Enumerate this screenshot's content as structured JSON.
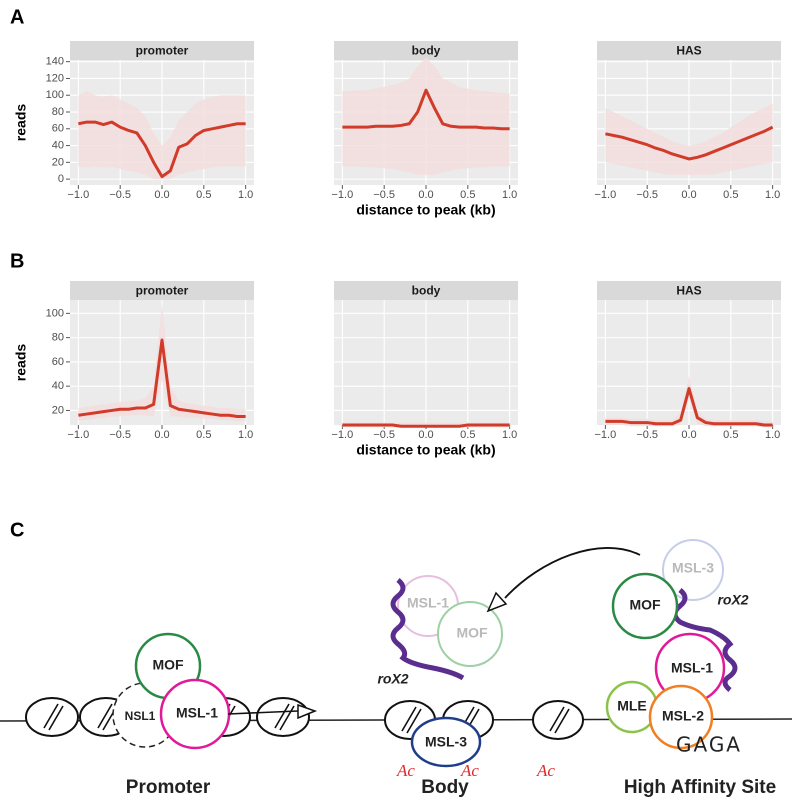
{
  "chart_data": [
    {
      "type": "line",
      "panel": "A",
      "ylabel": "reads",
      "xlabel": "distance to peak (kb)",
      "x": [
        -1.0,
        -0.9,
        -0.8,
        -0.7,
        -0.6,
        -0.5,
        -0.4,
        -0.3,
        -0.2,
        -0.1,
        0.0,
        0.1,
        0.2,
        0.3,
        0.4,
        0.5,
        0.6,
        0.7,
        0.8,
        0.9,
        1.0
      ],
      "xlim": [
        -1.1,
        1.1
      ],
      "xticks": [
        {
          "value": -1,
          "label": "−1.0"
        },
        {
          "value": -0.5,
          "label": "−0.5"
        },
        {
          "value": 0,
          "label": "0.0"
        },
        0.5,
        {
          "value": 1,
          "label": "1.0"
        }
      ],
      "ylim": [
        -7,
        142
      ],
      "yticks": [
        0,
        20,
        40,
        60,
        80,
        100,
        120,
        140
      ],
      "grid": true,
      "facets": [
        {
          "title": "promoter",
          "series": [
            {
              "color": "#d13b2a",
              "band_color": "#f3dede",
              "values": [
                66,
                68,
                68,
                65,
                68,
                62,
                58,
                55,
                40,
                20,
                3,
                10,
                38,
                42,
                52,
                58,
                60,
                62,
                64,
                66,
                66
              ],
              "band": {
                "lower": [
                  15,
                  14,
                  15,
                  14,
                  15,
                  12,
                  10,
                  8,
                  5,
                  0,
                  0,
                  0,
                  5,
                  8,
                  10,
                  12,
                  14,
                  15,
                  15,
                  15,
                  15
                ],
                "upper": [
                  100,
                  105,
                  100,
                  98,
                  100,
                  95,
                  90,
                  85,
                  75,
                  55,
                  40,
                  50,
                  70,
                  80,
                  90,
                  95,
                  98,
                  100,
                  100,
                  100,
                  100
                ]
              }
            }
          ]
        },
        {
          "title": "body",
          "series": [
            {
              "color": "#d13b2a",
              "band_color": "#f3dede",
              "values": [
                62,
                62,
                62,
                62,
                63,
                63,
                63,
                64,
                66,
                80,
                106,
                85,
                66,
                63,
                62,
                62,
                62,
                61,
                61,
                60,
                60
              ],
              "band": {
                "lower": [
                  15,
                  15,
                  15,
                  14,
                  14,
                  13,
                  12,
                  10,
                  8,
                  5,
                  5,
                  5,
                  8,
                  10,
                  12,
                  13,
                  14,
                  14,
                  15,
                  15,
                  15
                ],
                "upper": [
                  105,
                  105,
                  106,
                  106,
                  108,
                  110,
                  112,
                  115,
                  120,
                  135,
                  145,
                  135,
                  120,
                  115,
                  110,
                  108,
                  106,
                  105,
                  104,
                  103,
                  102
                ]
              }
            }
          ]
        },
        {
          "title": "HAS",
          "series": [
            {
              "color": "#d13b2a",
              "band_color": "#f3dede",
              "values": [
                54,
                52,
                50,
                47,
                44,
                41,
                37,
                34,
                30,
                27,
                24,
                26,
                29,
                33,
                37,
                41,
                45,
                49,
                53,
                57,
                62
              ],
              "band": {
                "lower": [
                  20,
                  18,
                  16,
                  14,
                  12,
                  10,
                  8,
                  6,
                  5,
                  5,
                  5,
                  5,
                  5,
                  6,
                  8,
                  10,
                  12,
                  14,
                  16,
                  18,
                  20
                ],
                "upper": [
                  85,
                  80,
                  75,
                  70,
                  65,
                  60,
                  55,
                  50,
                  45,
                  42,
                  40,
                  42,
                  45,
                  50,
                  55,
                  62,
                  68,
                  75,
                  80,
                  85,
                  90
                ]
              }
            }
          ]
        }
      ]
    },
    {
      "type": "line",
      "panel": "B",
      "ylabel": "reads",
      "xlabel": "distance to peak (kb)",
      "x": [
        -1.0,
        -0.9,
        -0.8,
        -0.7,
        -0.6,
        -0.5,
        -0.4,
        -0.3,
        -0.2,
        -0.1,
        0.0,
        0.1,
        0.2,
        0.3,
        0.4,
        0.5,
        0.6,
        0.7,
        0.8,
        0.9,
        1.0
      ],
      "xlim": [
        -1.1,
        1.1
      ],
      "xticks": [
        {
          "value": -1,
          "label": "−1.0"
        },
        {
          "value": -0.5,
          "label": "−0.5"
        },
        {
          "value": 0,
          "label": "0.0"
        },
        0.5,
        {
          "value": 1,
          "label": "1.0"
        }
      ],
      "ylim": [
        8,
        111
      ],
      "yticks": [
        20,
        40,
        60,
        80,
        100
      ],
      "grid": true,
      "facets": [
        {
          "title": "promoter",
          "series": [
            {
              "color": "#d13b2a",
              "band_color": "#f3dede",
              "values": [
                16,
                17,
                18,
                19,
                20,
                21,
                21,
                22,
                22,
                25,
                78,
                24,
                21,
                20,
                19,
                18,
                17,
                16,
                16,
                15,
                15
              ],
              "band": {
                "lower": [
                  12,
                  12,
                  13,
                  14,
                  15,
                  15,
                  16,
                  16,
                  16,
                  15,
                  45,
                  15,
                  15,
                  14,
                  14,
                  13,
                  13,
                  12,
                  12,
                  11,
                  11
                ],
                "upper": [
                  22,
                  23,
                  24,
                  25,
                  26,
                  27,
                  28,
                  28,
                  30,
                  40,
                  108,
                  40,
                  28,
                  26,
                  25,
                  24,
                  23,
                  22,
                  22,
                  21,
                  21
                ]
              }
            }
          ]
        },
        {
          "title": "body",
          "series": [
            {
              "color": "#d13b2a",
              "band_color": "#f3dede",
              "values": [
                8,
                8,
                8,
                8,
                8,
                8,
                8,
                7,
                7,
                7,
                7,
                7,
                7,
                7,
                7,
                8,
                8,
                8,
                8,
                8,
                8
              ],
              "band": {
                "lower": [
                  6,
                  6,
                  6,
                  6,
                  6,
                  6,
                  6,
                  6,
                  6,
                  6,
                  6,
                  6,
                  6,
                  6,
                  6,
                  6,
                  6,
                  6,
                  6,
                  6,
                  6
                ],
                "upper": [
                  10,
                  10,
                  10,
                  10,
                  10,
                  10,
                  10,
                  10,
                  10,
                  10,
                  10,
                  10,
                  10,
                  10,
                  10,
                  10,
                  10,
                  10,
                  10,
                  10,
                  10
                ]
              }
            }
          ]
        },
        {
          "title": "HAS",
          "series": [
            {
              "color": "#d13b2a",
              "band_color": "#f3dede",
              "values": [
                11,
                11,
                11,
                10,
                10,
                10,
                9,
                9,
                9,
                12,
                38,
                14,
                10,
                9,
                9,
                9,
                9,
                9,
                9,
                8,
                8
              ],
              "band": {
                "lower": [
                  8,
                  8,
                  8,
                  7,
                  7,
                  7,
                  7,
                  7,
                  7,
                  8,
                  30,
                  9,
                  7,
                  7,
                  7,
                  7,
                  7,
                  7,
                  7,
                  6,
                  6
                ],
                "upper": [
                  14,
                  14,
                  14,
                  13,
                  13,
                  13,
                  12,
                  12,
                  12,
                  18,
                  48,
                  20,
                  13,
                  12,
                  12,
                  12,
                  12,
                  12,
                  12,
                  11,
                  11
                ]
              }
            }
          ]
        }
      ]
    }
  ],
  "diagram": {
    "label": "C",
    "promoter": {
      "mof": "MOF",
      "nsl1": "NSL1",
      "msl1": "MSL-1"
    },
    "body": {
      "msl1": "MSL-1",
      "mof": "MOF",
      "msl3": "MSL-3",
      "rox2": "roX2",
      "ac": [
        "Ac",
        "Ac",
        "Ac"
      ]
    },
    "has": {
      "msl3": "MSL-3",
      "mof": "MOF",
      "rox2": "roX2",
      "msl1": "MSL-1",
      "mle": "MLE",
      "msl2": "MSL-2",
      "gaga": "GAGA"
    },
    "captions": [
      "Promoter",
      "Body",
      "High Affinity Site"
    ]
  }
}
